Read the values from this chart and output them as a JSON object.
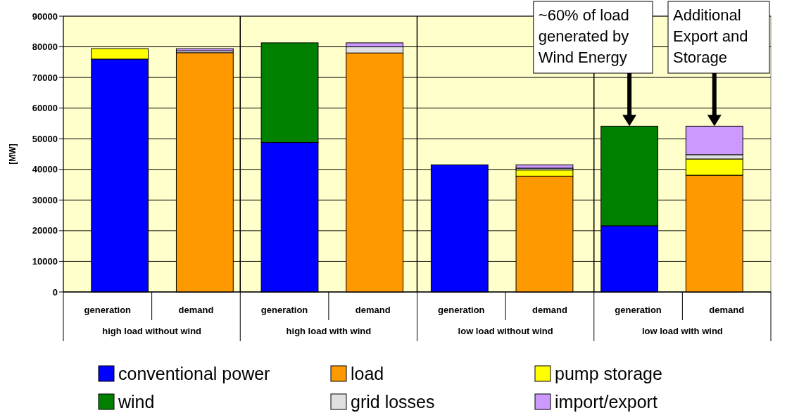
{
  "chart_data": {
    "type": "bar",
    "stacked": true,
    "ylabel": "[MW]",
    "categories": [
      "generation",
      "demand",
      "generation",
      "demand",
      "generation",
      "demand",
      "generation",
      "demand"
    ],
    "series": [
      {
        "name": "conventional power",
        "color": "#0000ff",
        "values": [
          76000,
          0,
          48800,
          0,
          41500,
          0,
          21600,
          0
        ]
      },
      {
        "name": "load",
        "color": "#ff9900",
        "values": [
          0,
          78100,
          0,
          78000,
          0,
          37800,
          0,
          38100
        ]
      },
      {
        "name": "pump storage",
        "color": "#ffff00",
        "values": [
          3400,
          0,
          0,
          0,
          0,
          2000,
          0,
          5300
        ]
      },
      {
        "name": "wind",
        "color": "#008000",
        "values": [
          0,
          0,
          32500,
          0,
          0,
          0,
          32500,
          0
        ]
      },
      {
        "name": "grid losses",
        "color": "#e0e0e0",
        "values": [
          0,
          600,
          0,
          2000,
          0,
          600,
          0,
          1400
        ]
      },
      {
        "name": "import/export",
        "color": "#cc99ff",
        "values": [
          0,
          700,
          0,
          1300,
          0,
          1100,
          0,
          9300
        ]
      }
    ],
    "ylim": [
      0,
      90000
    ],
    "yticks": [
      0,
      10000,
      20000,
      30000,
      40000,
      50000,
      60000,
      70000,
      80000,
      90000
    ],
    "grid": "y",
    "legend": "bottom",
    "annotations": [
      "high load without wind",
      "high load with wind",
      "low load without wind",
      "low load with wind",
      "~60% of load generated by Wind Energy",
      "Additional Export and Storage"
    ]
  }
}
